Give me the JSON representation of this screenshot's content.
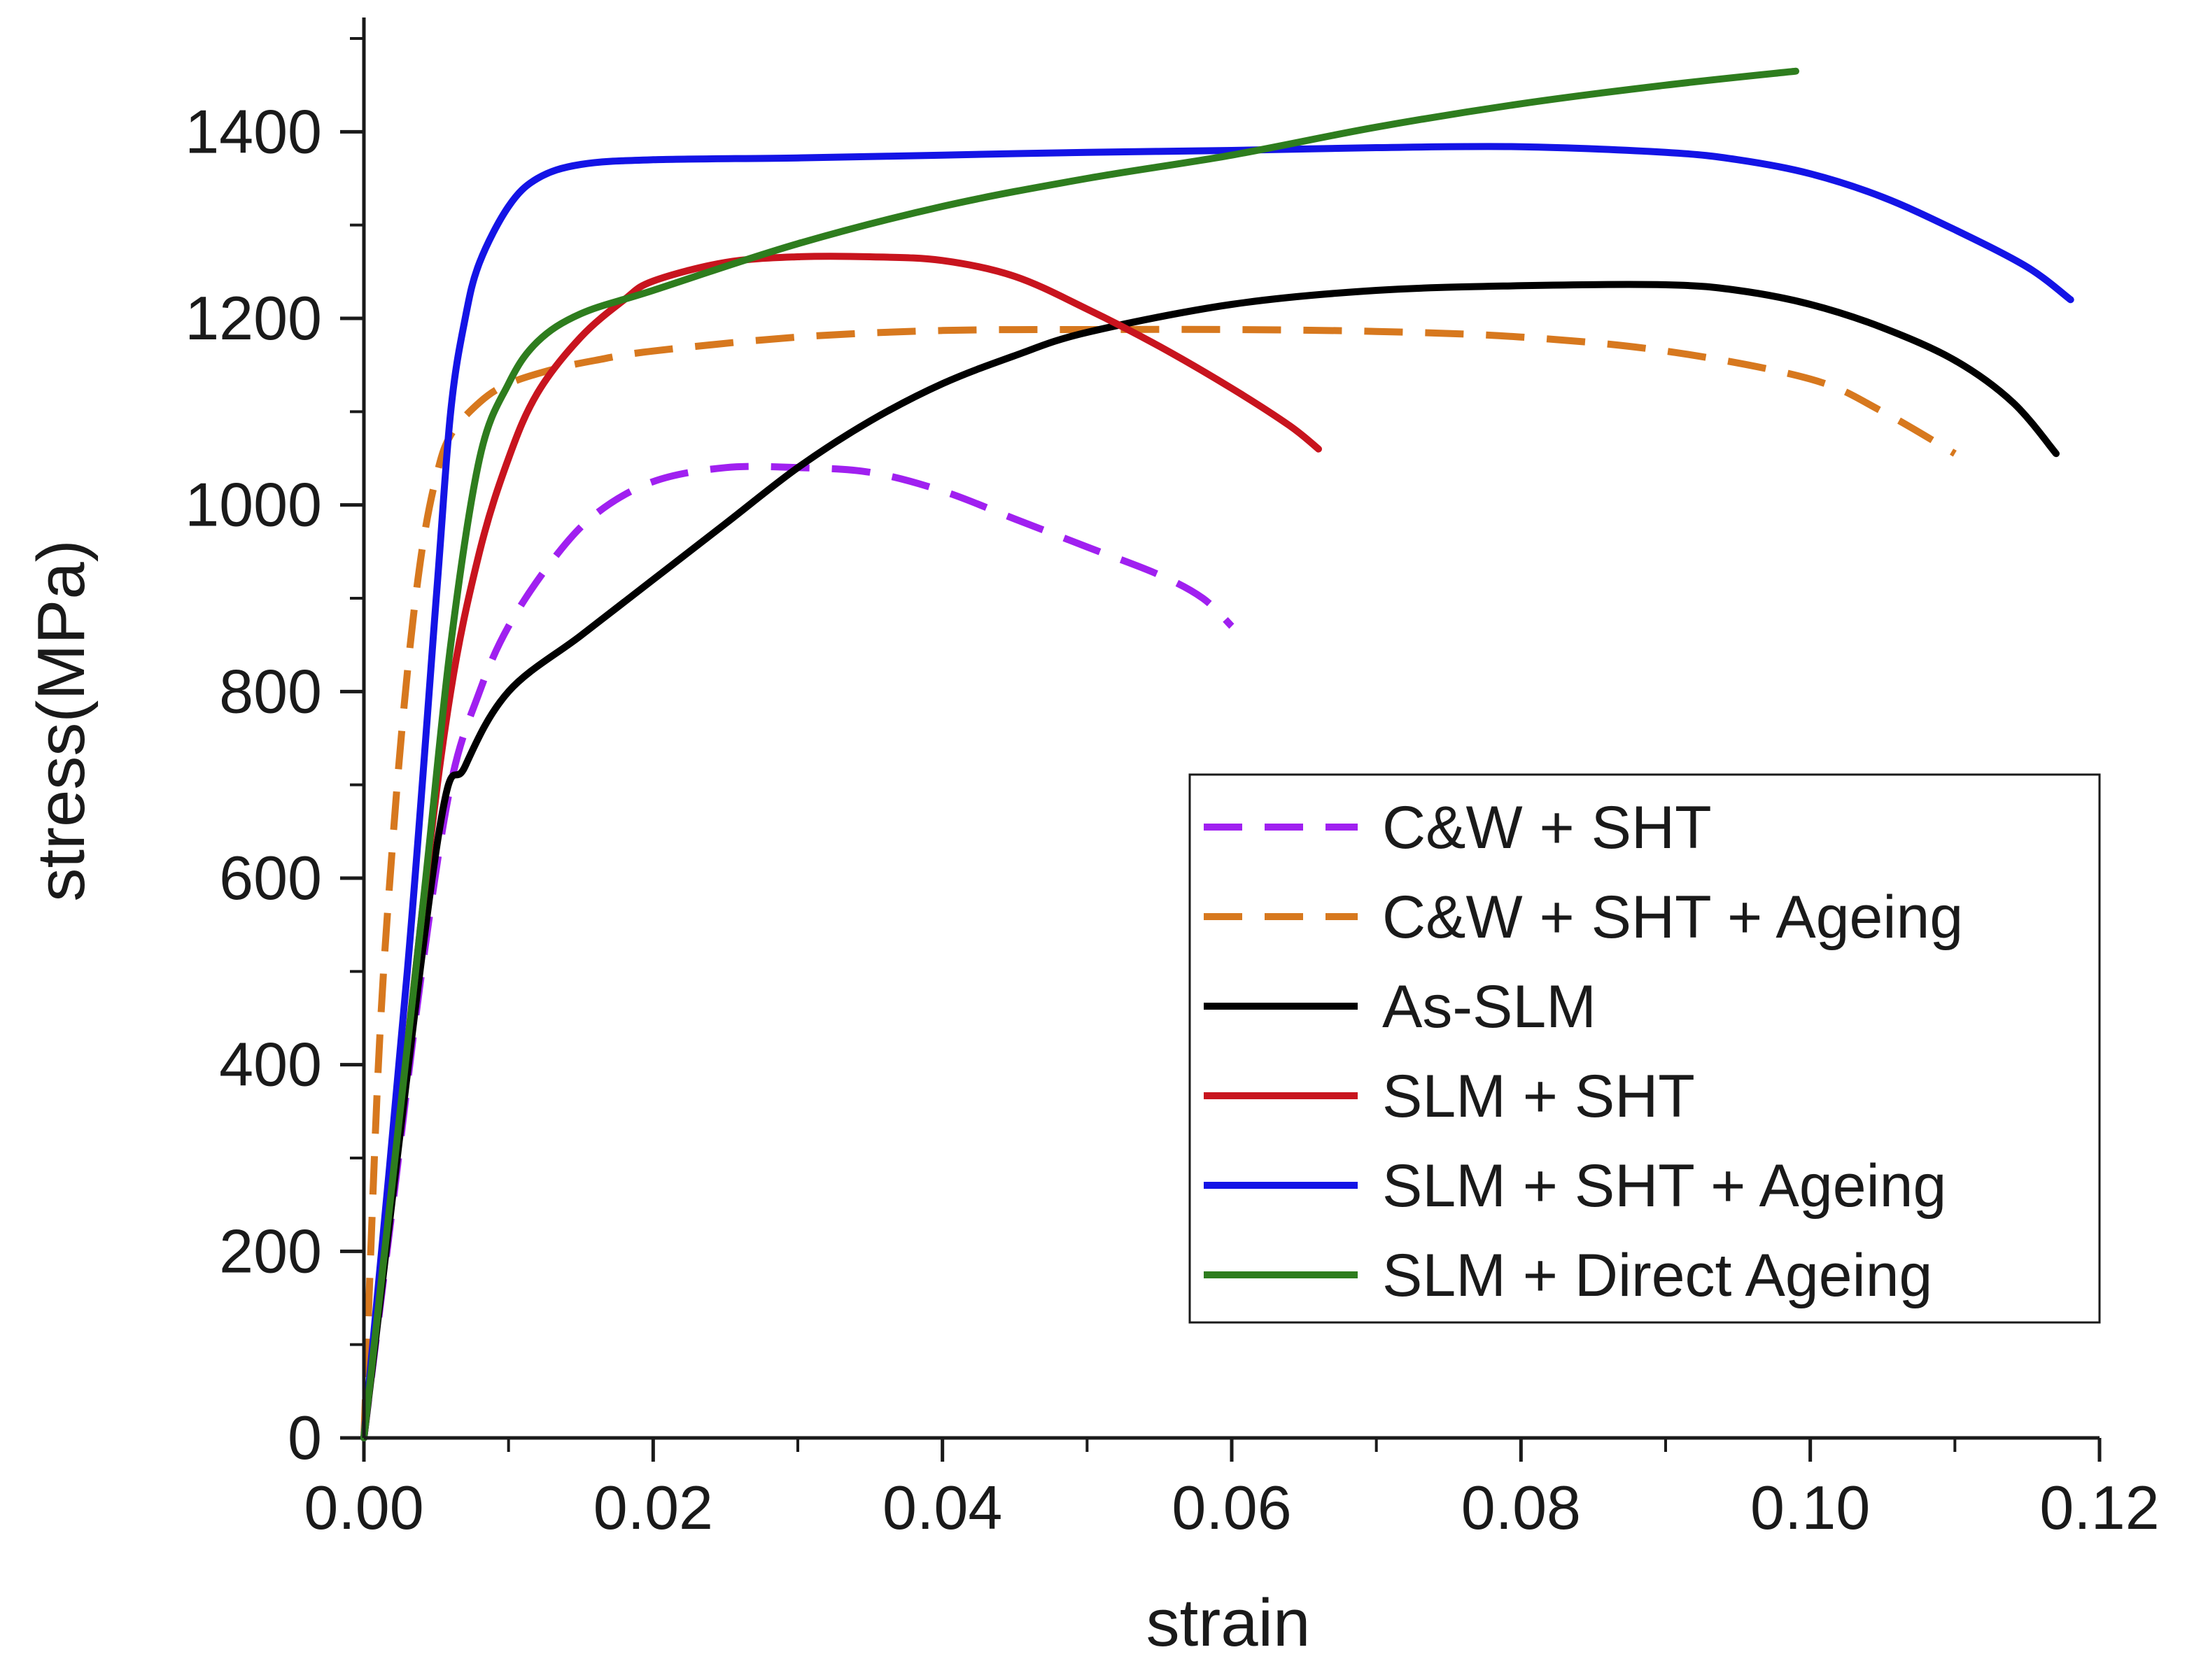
{
  "chart_data": {
    "type": "line",
    "title": "",
    "xlabel": "strain",
    "ylabel": "stress(MPa)",
    "xlim": [
      0,
      0.12
    ],
    "ylim": [
      0,
      1500
    ],
    "x_ticks": [
      0,
      0.02,
      0.04,
      0.06,
      0.08,
      0.1,
      0.12
    ],
    "x_tick_labels": [
      "0.00",
      "0.02",
      "0.04",
      "0.06",
      "0.08",
      "0.10",
      "0.12"
    ],
    "x_minor_step": 0.01,
    "y_ticks": [
      0,
      200,
      400,
      600,
      800,
      1000,
      1200,
      1400
    ],
    "y_tick_labels": [
      "0",
      "200",
      "400",
      "600",
      "800",
      "1000",
      "1200",
      "1400"
    ],
    "y_minor_step": 100,
    "grid": false,
    "legend_position": "bottom-right",
    "series": [
      {
        "name": "C&W + SHT",
        "color": "#a020f0",
        "dash": "dashed",
        "x": [
          0,
          0.002,
          0.004,
          0.006,
          0.008,
          0.01,
          0.013,
          0.016,
          0.02,
          0.025,
          0.03,
          0.035,
          0.04,
          0.045,
          0.05,
          0.055,
          0.058,
          0.06
        ],
        "y": [
          0,
          250,
          500,
          700,
          800,
          870,
          940,
          990,
          1025,
          1040,
          1040,
          1035,
          1015,
          985,
          955,
          925,
          900,
          870
        ]
      },
      {
        "name": "C&W + SHT + Ageing",
        "color": "#d7781e",
        "dash": "dashed",
        "x": [
          0,
          0.001,
          0.002,
          0.003,
          0.004,
          0.005,
          0.006,
          0.008,
          0.01,
          0.013,
          0.016,
          0.02,
          0.03,
          0.04,
          0.05,
          0.06,
          0.07,
          0.08,
          0.09,
          0.1,
          0.105,
          0.11
        ],
        "y": [
          0,
          400,
          640,
          820,
          950,
          1030,
          1075,
          1110,
          1130,
          1145,
          1155,
          1165,
          1180,
          1187,
          1188,
          1188,
          1186,
          1180,
          1165,
          1135,
          1100,
          1055
        ]
      },
      {
        "name": "As-SLM",
        "color": "#000000",
        "dash": "solid",
        "x": [
          0,
          0.005,
          0.007,
          0.01,
          0.015,
          0.02,
          0.025,
          0.03,
          0.035,
          0.04,
          0.045,
          0.05,
          0.06,
          0.07,
          0.08,
          0.09,
          0.095,
          0.1,
          0.105,
          0.11,
          0.114,
          0.117
        ],
        "y": [
          0,
          630,
          720,
          800,
          860,
          920,
          980,
          1040,
          1090,
          1130,
          1160,
          1185,
          1215,
          1230,
          1235,
          1236,
          1230,
          1215,
          1190,
          1155,
          1110,
          1055
        ]
      },
      {
        "name": "SLM + SHT",
        "color": "#c8141e",
        "dash": "solid",
        "x": [
          0,
          0.004,
          0.006,
          0.008,
          0.01,
          0.012,
          0.015,
          0.018,
          0.02,
          0.025,
          0.03,
          0.035,
          0.04,
          0.045,
          0.05,
          0.055,
          0.06,
          0.064,
          0.066
        ],
        "y": [
          0,
          560,
          800,
          950,
          1050,
          1120,
          1180,
          1220,
          1240,
          1260,
          1266,
          1266,
          1262,
          1245,
          1210,
          1170,
          1125,
          1085,
          1060
        ]
      },
      {
        "name": "SLM + SHT + Ageing",
        "color": "#1414e6",
        "dash": "solid",
        "x": [
          0,
          0.003,
          0.005,
          0.006,
          0.007,
          0.008,
          0.01,
          0.012,
          0.015,
          0.02,
          0.03,
          0.04,
          0.05,
          0.06,
          0.07,
          0.08,
          0.09,
          0.095,
          0.1,
          0.105,
          0.11,
          0.115,
          0.118
        ],
        "y": [
          0,
          500,
          900,
          1100,
          1200,
          1260,
          1320,
          1350,
          1365,
          1370,
          1372,
          1375,
          1378,
          1380,
          1383,
          1384,
          1378,
          1370,
          1355,
          1330,
          1295,
          1255,
          1220
        ]
      },
      {
        "name": "SLM + Direct Ageing",
        "color": "#2e7d1e",
        "dash": "solid",
        "x": [
          0,
          0.004,
          0.006,
          0.008,
          0.01,
          0.012,
          0.015,
          0.02,
          0.03,
          0.04,
          0.05,
          0.06,
          0.07,
          0.08,
          0.09,
          0.099
        ],
        "y": [
          0,
          560,
          850,
          1050,
          1130,
          1175,
          1205,
          1230,
          1280,
          1320,
          1350,
          1375,
          1405,
          1430,
          1450,
          1465
        ]
      }
    ]
  }
}
